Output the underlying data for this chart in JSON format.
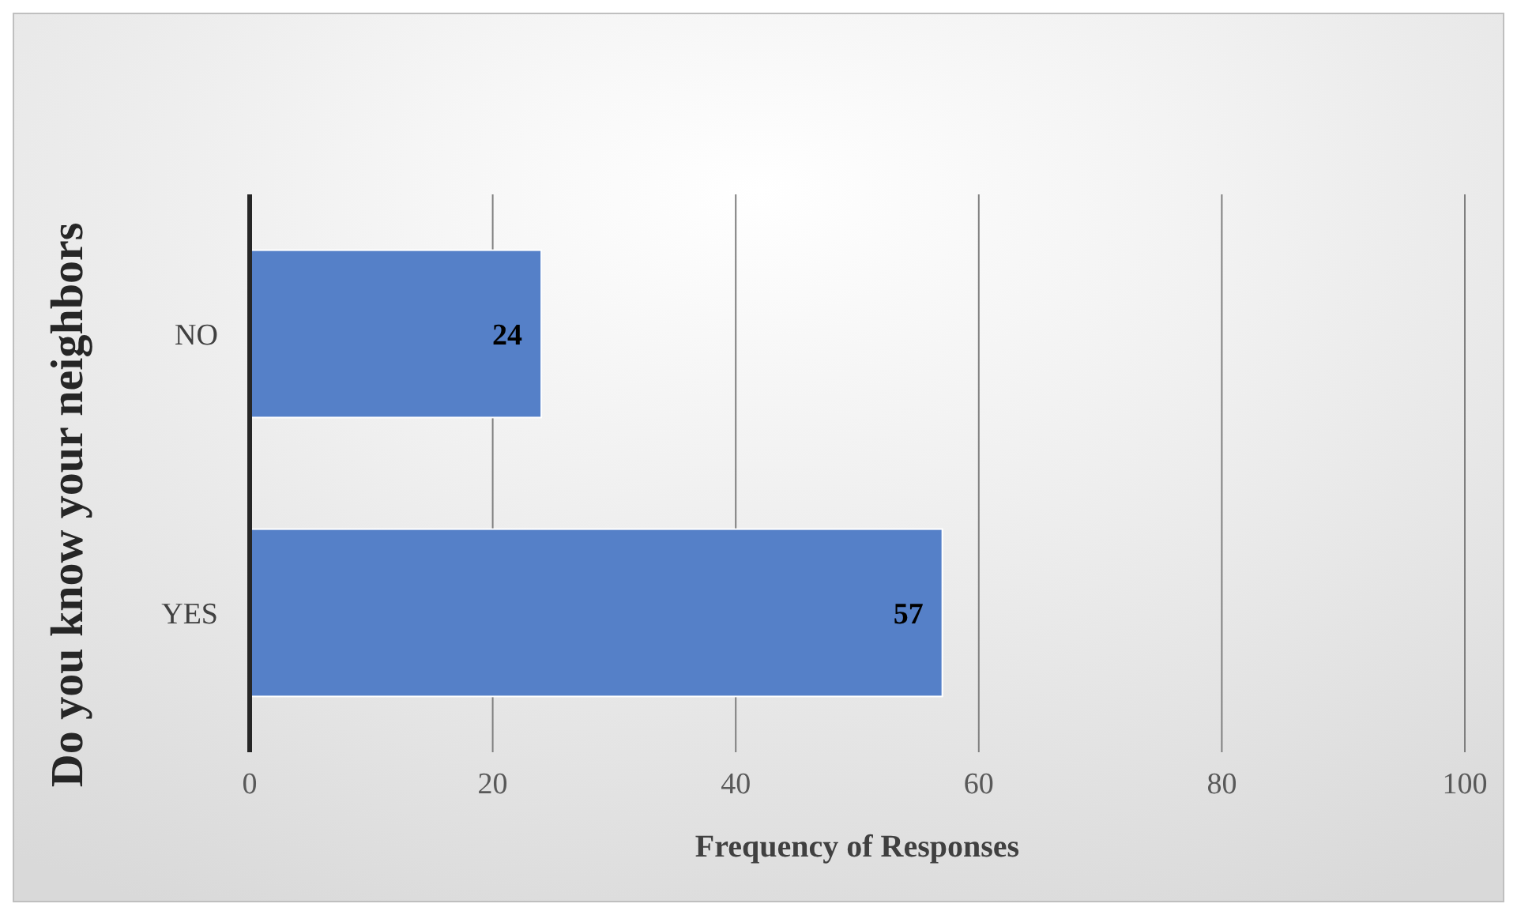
{
  "chart_data": {
    "type": "bar",
    "orientation": "horizontal",
    "xlabel": "Frequency of Responses",
    "ylabel": "Do you know your neighbors",
    "categories": [
      "NO",
      "YES"
    ],
    "values": [
      24,
      57
    ],
    "color": "#5580c8",
    "xlim": [
      0,
      100
    ],
    "xticks": [
      0,
      20,
      40,
      60,
      80,
      100
    ],
    "grid": "x",
    "data_labels": true
  }
}
